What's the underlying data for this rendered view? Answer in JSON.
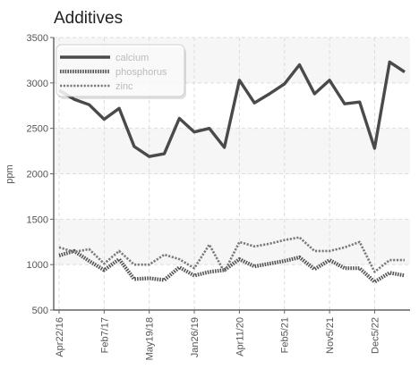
{
  "chart_data": {
    "type": "line",
    "title": "Additives",
    "xlabel": "",
    "ylabel": "ppm",
    "ylim": [
      500,
      3500
    ],
    "yticks": [
      500,
      1000,
      1500,
      2000,
      2500,
      3000,
      3500
    ],
    "grid": true,
    "legend_position": "top-left",
    "x": [
      "Apr22/16",
      "",
      "",
      "Feb7/17",
      "",
      "",
      "May19/18",
      "",
      "",
      "Jan26/19",
      "",
      "",
      "Apr11/20",
      "",
      "",
      "Feb5/21",
      "",
      "",
      "Nov5/21",
      "",
      "",
      "Dec5/22",
      "",
      ""
    ],
    "xtick_labels": [
      "Apr22/16",
      "Feb7/17",
      "May19/18",
      "Jan26/19",
      "Apr11/20",
      "Feb5/21",
      "Nov5/21",
      "Dec5/22"
    ],
    "series": [
      {
        "name": "calcium",
        "color": "#4a4a4a",
        "style": "solid",
        "values": [
          2920,
          2820,
          2760,
          2600,
          2720,
          2300,
          2190,
          2220,
          2610,
          2460,
          2500,
          2290,
          3030,
          2780,
          2880,
          2990,
          3200,
          2880,
          3030,
          2770,
          2790,
          2280,
          3230,
          3120
        ]
      },
      {
        "name": "phosphorus",
        "color": "#555555",
        "style": "dotted",
        "values": [
          1100,
          1150,
          1040,
          940,
          1060,
          840,
          850,
          830,
          970,
          880,
          920,
          940,
          1060,
          980,
          1010,
          1040,
          1080,
          950,
          1050,
          960,
          960,
          810,
          910,
          880
        ]
      },
      {
        "name": "zinc",
        "color": "#7a7a7a",
        "style": "dashed",
        "values": [
          1190,
          1140,
          1170,
          1010,
          1150,
          1000,
          1000,
          1110,
          1060,
          960,
          1220,
          920,
          1250,
          1200,
          1230,
          1270,
          1300,
          1150,
          1150,
          1190,
          1250,
          920,
          1050,
          1050
        ]
      }
    ]
  }
}
